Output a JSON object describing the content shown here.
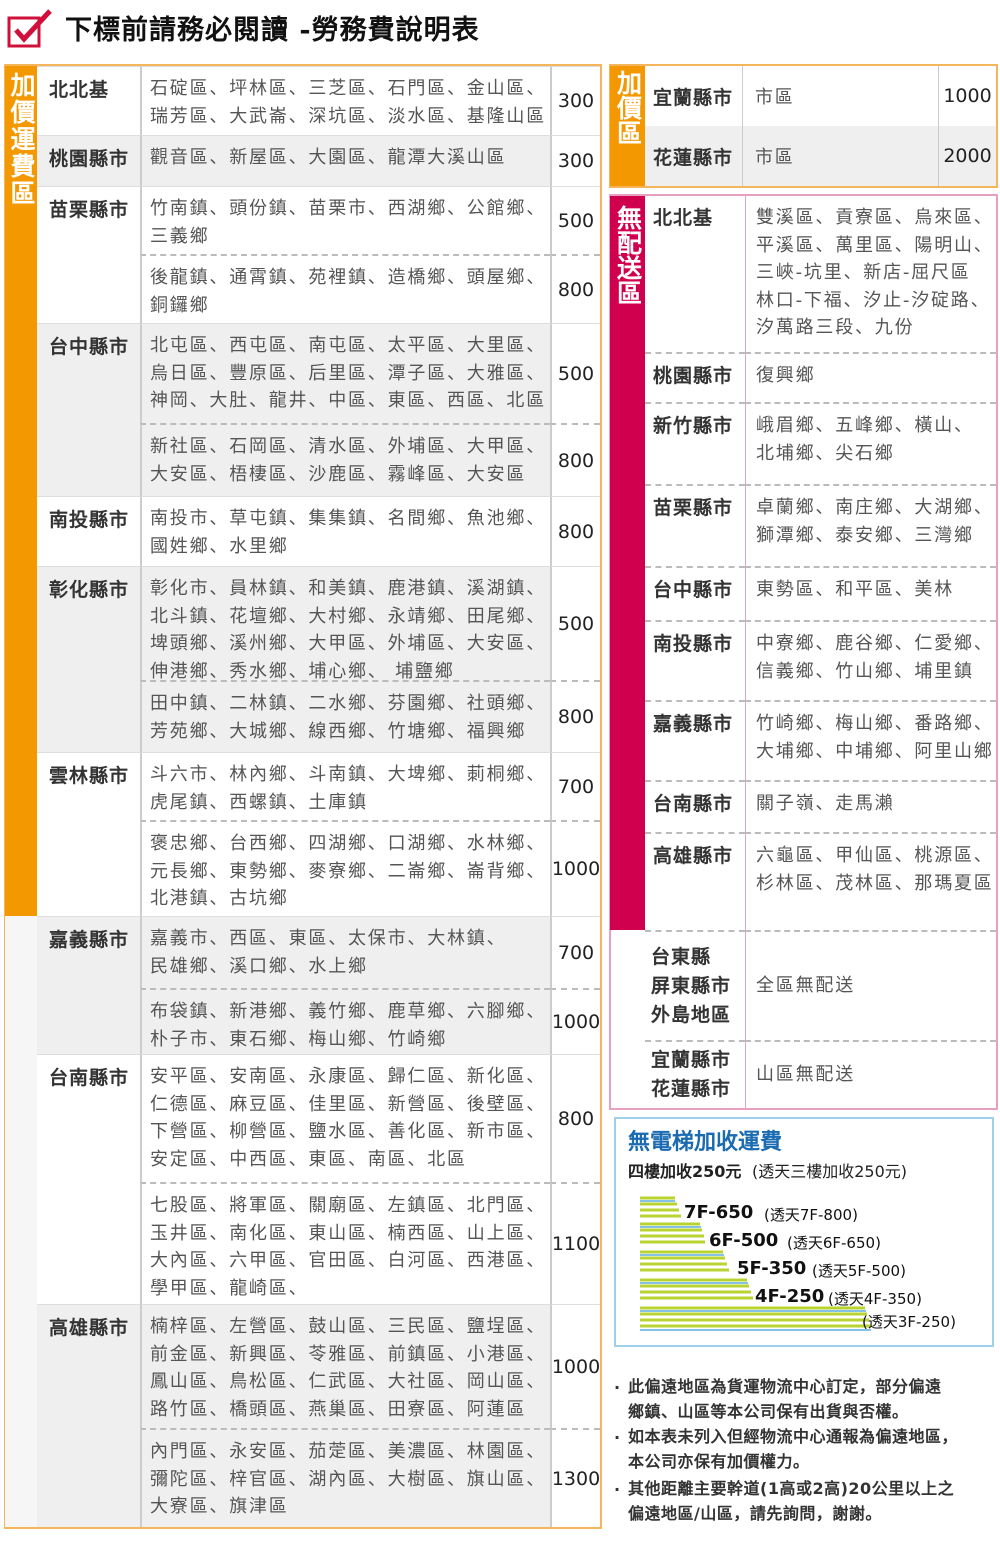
{
  "header": {
    "title": "下標前請務必閱讀 -勞務費說明表"
  },
  "surcharge_table": {
    "side_label": "加價運費區",
    "groups": [
      {
        "county": [
          "北北基"
        ],
        "rows": [
          {
            "areas": [
              "石碇區、坪林區、三芝區、石門區、金山區、",
              "瑞芳區、大武崙、深坑區、淡水區、基隆山區"
            ],
            "fee": 300
          }
        ]
      },
      {
        "county": [
          "桃園縣市"
        ],
        "rows": [
          {
            "areas": [
              "觀音區、新屋區、大園區、龍潭大溪山區"
            ],
            "fee": 300
          }
        ]
      },
      {
        "county": [
          "苗栗縣市"
        ],
        "rows": [
          {
            "areas": [
              "竹南鎮、頭份鎮、苗栗市、西湖鄉、公館鄉、",
              "三義鄉"
            ],
            "fee": 500
          },
          {
            "areas": [
              "後龍鎮、通霄鎮、苑裡鎮、造橋鄉、頭屋鄉、",
              "銅鑼鄉"
            ],
            "fee": 800
          }
        ]
      },
      {
        "county": [
          "台中縣市"
        ],
        "rows": [
          {
            "areas": [
              "北屯區、西屯區、南屯區、太平區、大里區、",
              "烏日區、豐原區、后里區、潭子區、大雅區、",
              "神岡、大肚、龍井、中區、東區、西區、北區"
            ],
            "fee": 500
          },
          {
            "areas": [
              "新社區、石岡區、清水區、外埔區、大甲區、",
              "大安區、梧棲區、沙鹿區、霧峰區、大安區"
            ],
            "fee": 800
          }
        ]
      },
      {
        "county": [
          "南投縣市"
        ],
        "rows": [
          {
            "areas": [
              "南投市、草屯鎮、集集鎮、名間鄉、魚池鄉、",
              "國姓鄉、水里鄉"
            ],
            "fee": 800
          }
        ]
      },
      {
        "county": [
          "彰化縣市"
        ],
        "rows": [
          {
            "areas": [
              "彰化市、員林鎮、和美鎮、鹿港鎮、溪湖鎮、",
              "北斗鎮、花壇鄉、大村鄉、永靖鄉、田尾鄉、",
              "埤頭鄉、溪州鄉、大甲區、外埔區、大安區、",
              "伸港鄉、秀水鄉、埔心鄉、 埔鹽鄉"
            ],
            "fee": 500
          },
          {
            "areas": [
              "田中鎮、二林鎮、二水鄉、芬園鄉、社頭鄉、",
              "芳苑鄉、大城鄉、線西鄉、竹塘鄉、福興鄉"
            ],
            "fee": 800
          }
        ]
      },
      {
        "county": [
          "雲林縣市"
        ],
        "rows": [
          {
            "areas": [
              "斗六市、林內鄉、斗南鎮、大埤鄉、莿桐鄉、",
              "虎尾鎮、西螺鎮、土庫鎮"
            ],
            "fee": 700
          },
          {
            "areas": [
              "褒忠鄉、台西鄉、四湖鄉、口湖鄉、水林鄉、",
              "元長鄉、東勢鄉、麥寮鄉、二崙鄉、崙背鄉、",
              "北港鎮、古坑鄉"
            ],
            "fee": 1000
          }
        ]
      },
      {
        "county": [
          "嘉義縣市"
        ],
        "rows": [
          {
            "areas": [
              "嘉義市、西區、東區、太保市、大林鎮、",
              "民雄鄉、溪口鄉、水上鄉"
            ],
            "fee": 700
          },
          {
            "areas": [
              "布袋鎮、新港鄉、義竹鄉、鹿草鄉、六腳鄉、",
              "朴子市、東石鄉、梅山鄉、竹崎鄉"
            ],
            "fee": 1000
          }
        ]
      },
      {
        "county": [
          "台南縣市"
        ],
        "rows": [
          {
            "areas": [
              "安平區、安南區、永康區、歸仁區、新化區、",
              "仁德區、麻豆區、佳里區、新營區、後壁區、",
              "下營區、柳營區、鹽水區、善化區、新市區、",
              "安定區、中西區、東區、南區、北區"
            ],
            "fee": 800
          },
          {
            "areas": [
              "七股區、將軍區、關廟區、左鎮區、北門區、",
              "玉井區、南化區、東山區、楠西區、山上區、",
              "大內區、六甲區、官田區、白河區、西港區、",
              "學甲區、龍崎區、"
            ],
            "fee": 1100
          }
        ]
      },
      {
        "county": [
          "高雄縣市"
        ],
        "rows": [
          {
            "areas": [
              "楠梓區、左營區、鼓山區、三民區、鹽埕區、",
              "前金區、新興區、苓雅區、前鎮區、小港區、",
              "鳳山區、鳥松區、仁武區、大社區、岡山區、",
              "路竹區、橋頭區、燕巢區、田寮區、阿蓮區"
            ],
            "fee": 1000
          },
          {
            "areas": [
              "內門區、永安區、茄萣區、美濃區、林園區、",
              "彌陀區、梓官區、湖內區、大樹區、旗山區、",
              "大寮區、旗津區"
            ],
            "fee": 1300
          }
        ]
      }
    ]
  },
  "extra_table": {
    "side_label": "加價區",
    "rows": [
      {
        "county": "宜蘭縣市",
        "area": "市區",
        "fee": 1000
      },
      {
        "county": "花蓮縣市",
        "area": "市區",
        "fee": 2000
      }
    ]
  },
  "no_delivery_table": {
    "side_label": "無配送區",
    "rows": [
      {
        "county": [
          "北北基"
        ],
        "areas": [
          "雙溪區、貢寮區、烏來區、",
          "平溪區、萬里區、陽明山、",
          "三峽-坑里、新店-屈尺區",
          "林口-下福、汐止-汐碇路、",
          "汐萬路三段、九份"
        ]
      },
      {
        "county": [
          "桃園縣市"
        ],
        "areas": [
          "復興鄉"
        ]
      },
      {
        "county": [
          "新竹縣市"
        ],
        "areas": [
          "峨眉鄉、五峰鄉、橫山、",
          "北埔鄉、尖石鄉"
        ]
      },
      {
        "county": [
          "苗栗縣市"
        ],
        "areas": [
          "卓蘭鄉、南庄鄉、大湖鄉、",
          "獅潭鄉、泰安鄉、三灣鄉"
        ]
      },
      {
        "county": [
          "台中縣市"
        ],
        "areas": [
          "東勢區、和平區、美林"
        ]
      },
      {
        "county": [
          "南投縣市"
        ],
        "areas": [
          "中寮鄉、鹿谷鄉、仁愛鄉、",
          "信義鄉、竹山鄉、埔里鎮"
        ]
      },
      {
        "county": [
          "嘉義縣市"
        ],
        "areas": [
          "竹崎鄉、梅山鄉、番路鄉、",
          "大埔鄉、中埔鄉、阿里山鄉"
        ]
      },
      {
        "county": [
          "台南縣市"
        ],
        "areas": [
          "關子嶺、走馬瀨"
        ]
      },
      {
        "county": [
          "高雄縣市"
        ],
        "areas": [
          "六龜區、甲仙區、桃源區、",
          "杉林區、茂林區、那瑪夏區"
        ]
      },
      {
        "county": [
          "台東縣",
          "屏東縣市",
          "外島地區"
        ],
        "areas": [
          "全區無配送"
        ]
      },
      {
        "county": [
          "宜蘭縣市",
          "花蓮縣市"
        ],
        "areas": [
          "山區無配送"
        ]
      }
    ]
  },
  "elevator": {
    "title": "無電梯加收運費",
    "subtitle": {
      "main": "四樓加收250元",
      "note": "(透天三樓加收250元)"
    },
    "steps": [
      {
        "label": "7F-650",
        "note": "(透天7F-800)"
      },
      {
        "label": "6F-500",
        "note": "(透天6F-650)"
      },
      {
        "label": "5F-350",
        "note": "(透天5F-500)"
      },
      {
        "label": "4F-250",
        "note": "(透天4F-350)"
      }
    ],
    "extra_note": "(透天3F-250)"
  },
  "notes": [
    [
      "此偏遠地區為貨運物流中心訂定，部分偏遠",
      "鄉鎮、山區等本公司保有出貨與否權。"
    ],
    [
      "如本表未列入但經物流中心通報為偏遠地區，",
      "本公司亦保有加價權力。"
    ],
    [
      "其他距離主要幹道(1高或2高)20公里以上之",
      "偏遠地區/山區，請先詢問，謝謝。"
    ]
  ]
}
